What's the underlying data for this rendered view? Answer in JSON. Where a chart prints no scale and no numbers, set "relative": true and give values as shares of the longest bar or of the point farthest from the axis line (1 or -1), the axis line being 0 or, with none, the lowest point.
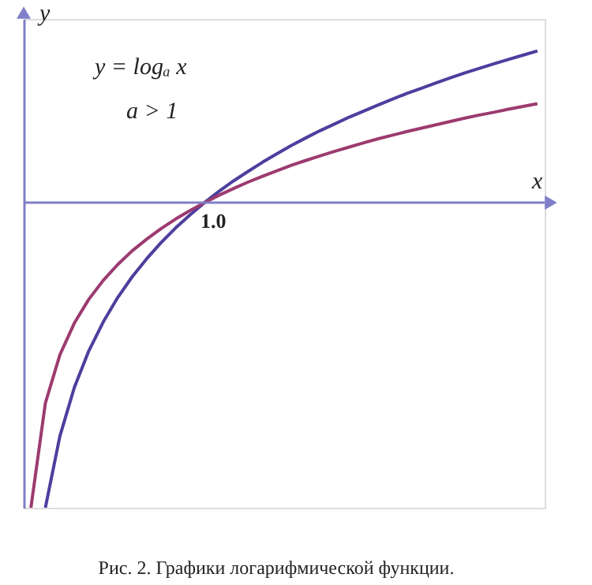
{
  "chart_data": {
    "type": "line",
    "relative": true,
    "xlabel": "x",
    "ylabel": "y",
    "ref_lines": [
      {
        "axis": "y",
        "value": 0,
        "color": "#7f7fc8"
      }
    ],
    "grid": false,
    "legend": false,
    "marker": "none",
    "line_style": "solid",
    "categories": [
      null,
      null,
      null,
      null,
      null,
      null,
      null,
      null,
      null,
      null,
      null,
      null,
      null,
      null,
      null,
      null,
      null,
      null,
      null,
      null,
      null,
      null,
      null,
      null,
      null,
      null,
      null,
      null,
      null,
      null,
      null,
      null,
      null,
      null,
      null,
      null
    ],
    "annotations": [
      "1.0",
      "y = logₐ x",
      "a > 1",
      "Рис. 2. Графики логарифмической функции."
    ],
    "series": [
      {
        "color": "#4b3f9e",
        "values": [
          null,
          -1.0,
          -0.766,
          -0.606,
          -0.486,
          -0.391,
          -0.311,
          -0.243,
          -0.184,
          -0.131,
          -0.083,
          -0.04,
          0.0,
          0.037,
          0.071,
          0.102,
          0.132,
          0.16,
          0.187,
          0.212,
          0.236,
          0.258,
          0.28,
          0.3,
          0.32,
          0.339,
          0.358,
          0.375,
          0.392,
          0.409,
          0.425,
          0.44,
          0.455,
          0.469,
          0.483,
          0.497
        ]
      },
      {
        "color": "#9c3b70",
        "values": [
          -1.0,
          -0.657,
          -0.499,
          -0.395,
          -0.317,
          -0.255,
          -0.203,
          -0.158,
          -0.12,
          -0.085,
          -0.054,
          -0.026,
          0.0,
          0.024,
          0.046,
          0.067,
          0.086,
          0.104,
          0.122,
          0.138,
          0.153,
          0.168,
          0.182,
          0.196,
          0.209,
          0.221,
          0.233,
          0.244,
          0.255,
          0.266,
          0.277,
          0.287,
          0.296,
          0.306,
          0.315,
          0.324
        ]
      }
    ]
  }
}
